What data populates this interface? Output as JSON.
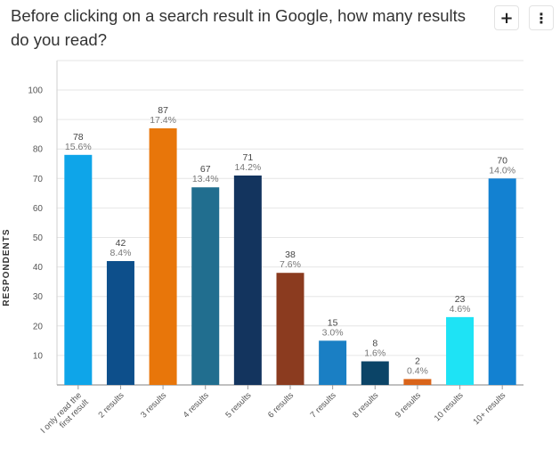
{
  "header": {
    "title": "Before clicking on a search result in Google, how many results do you read?",
    "add_button_label": "+",
    "menu_button_label": "⋮"
  },
  "chart_data": {
    "type": "bar",
    "title": "Before clicking on a search result in Google, how many results do you read?",
    "xlabel": "",
    "ylabel": "RESPONDENTS",
    "ylim": [
      0,
      100
    ],
    "yticks": [
      10,
      20,
      30,
      40,
      50,
      60,
      70,
      80,
      90,
      100
    ],
    "grid": true,
    "categories": [
      "I only read the first result",
      "2 results",
      "3 results",
      "4 results",
      "5 results",
      "6 results",
      "7 results",
      "8 results",
      "9 results",
      "10 results",
      "10+ results"
    ],
    "values": [
      78,
      42,
      87,
      67,
      71,
      38,
      15,
      8,
      2,
      23,
      70
    ],
    "percentages": [
      "15.6%",
      "8.4%",
      "17.4%",
      "13.4%",
      "14.2%",
      "7.6%",
      "3.0%",
      "1.6%",
      "0.4%",
      "4.6%",
      "14.0%"
    ],
    "colors": [
      "#0ea5e9",
      "#0d4f8b",
      "#e8760a",
      "#216e8f",
      "#13345e",
      "#8b3b1f",
      "#1a7fc4",
      "#0b4467",
      "#d9641a",
      "#1ee3f5",
      "#1381d1"
    ]
  }
}
